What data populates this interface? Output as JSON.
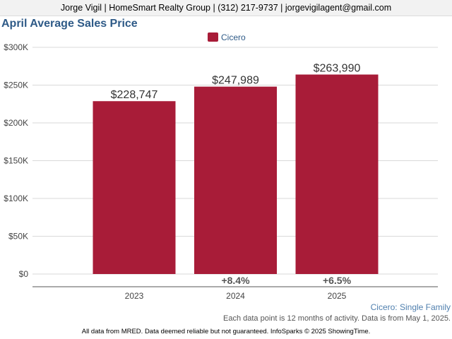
{
  "header": {
    "contact_line": "Jorge Vigil | HomeSmart Realty Group | (312) 217-9737 | jorgevigilagent@gmail.com"
  },
  "chart_data": {
    "type": "bar",
    "title": "April Average Sales Price",
    "categories": [
      "2023",
      "2024",
      "2025"
    ],
    "series": [
      {
        "name": "Cicero",
        "values": [
          228747,
          247989,
          263990
        ],
        "value_labels": [
          "$228,747",
          "$247,989",
          "$263,990"
        ],
        "change_labels": [
          "",
          "+8.4%",
          "+6.5%"
        ]
      }
    ],
    "ylim": [
      0,
      300000
    ],
    "yticks": [
      0,
      50000,
      100000,
      150000,
      200000,
      250000,
      300000
    ],
    "ytick_labels": [
      "$0",
      "$50K",
      "$100K",
      "$150K",
      "$200K",
      "$250K",
      "$300K"
    ],
    "xlabel": "",
    "ylabel": "",
    "grid": true,
    "legend_position": "top-center",
    "colors": {
      "bar": "#a81c38",
      "grid": "#d9d9d9",
      "title": "#2e5a87"
    }
  },
  "subtitle": "Cicero: Single Family",
  "note": "Each data point is 12 months of activity. Data is from May 1, 2025.",
  "footer": "All data from MRED. Data deemed reliable but not guaranteed. InfoSparks © 2025 ShowingTime."
}
